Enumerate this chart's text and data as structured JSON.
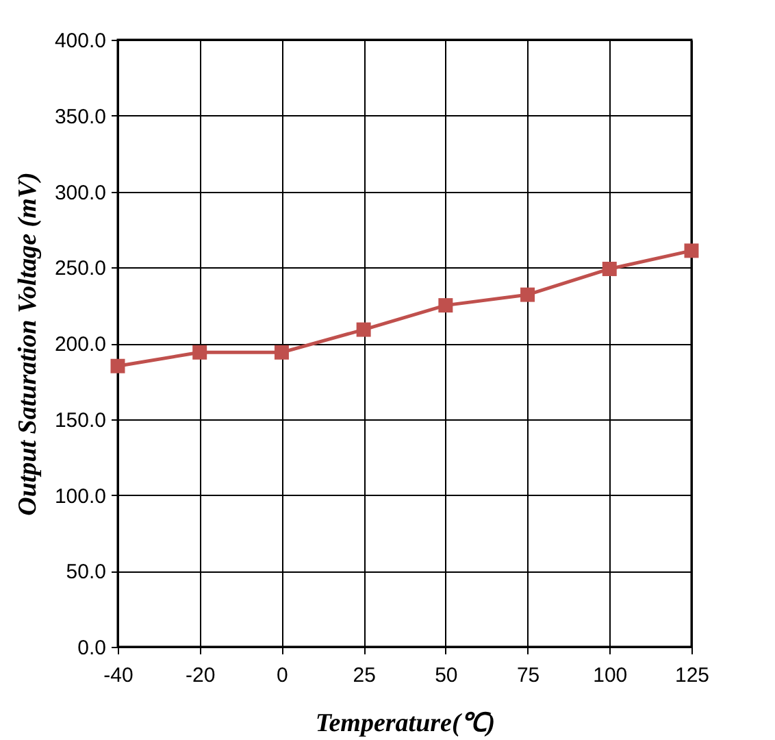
{
  "chart_data": {
    "type": "line",
    "xlabel": "Temperature(℃)",
    "ylabel": "Output Saturation Voltage (mV)",
    "categories": [
      "-40",
      "-20",
      "0",
      "25",
      "50",
      "75",
      "100",
      "125"
    ],
    "series": [
      {
        "color": "#c0504d",
        "values": [
          185,
          194,
          194,
          209,
          225,
          232,
          249,
          261
        ]
      }
    ],
    "ylim": [
      0,
      400
    ],
    "yticks": [
      {
        "value": 0,
        "label": "0.0"
      },
      {
        "value": 50,
        "label": "50.0"
      },
      {
        "value": 100,
        "label": "100.0"
      },
      {
        "value": 150,
        "label": "150.0"
      },
      {
        "value": 200,
        "label": "200.0"
      },
      {
        "value": 250,
        "label": "250.0"
      },
      {
        "value": 300,
        "label": "300.0"
      },
      {
        "value": 350,
        "label": "350.0"
      },
      {
        "value": 400,
        "label": "400.0"
      }
    ],
    "grid": true,
    "marker": "square",
    "line_style": "solid"
  }
}
